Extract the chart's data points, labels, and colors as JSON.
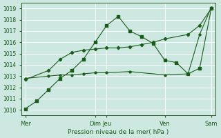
{
  "xlabel": "Pression niveau de la mer( hPa )",
  "bg_color": "#cce8e0",
  "grid_color": "#ffffff",
  "line_color": "#1a5c1a",
  "ylim": [
    1009.5,
    1019.5
  ],
  "yticks": [
    1010,
    1011,
    1012,
    1013,
    1014,
    1015,
    1016,
    1017,
    1018,
    1019
  ],
  "xtick_labels": [
    "Mer",
    "Dim",
    "Jeu",
    "Ven",
    "Sam"
  ],
  "xtick_positions": [
    0,
    9,
    10.5,
    18,
    24
  ],
  "xmin": -0.5,
  "xmax": 24.5,
  "vlines_x": [
    0,
    9,
    10.5,
    18,
    24
  ],
  "line1_x": [
    0,
    1.5,
    3,
    4.5,
    6,
    7.5,
    9,
    10.5,
    12,
    13.5,
    15,
    16.5,
    18,
    19.5,
    21,
    22.5,
    24
  ],
  "line1_y": [
    1010.1,
    1010.8,
    1011.8,
    1012.8,
    1013.5,
    1014.5,
    1016.0,
    1017.5,
    1018.3,
    1017.0,
    1016.5,
    1015.9,
    1014.4,
    1014.2,
    1013.2,
    1013.7,
    1019.0
  ],
  "line2_x": [
    0,
    3,
    4.5,
    6,
    7.5,
    9,
    10.5,
    12,
    13.5,
    15,
    16.5,
    18,
    21,
    22.5,
    24
  ],
  "line2_y": [
    1012.7,
    1013.5,
    1014.5,
    1015.1,
    1015.3,
    1015.4,
    1015.5,
    1015.5,
    1015.6,
    1015.8,
    1016.0,
    1016.3,
    1016.7,
    1017.5,
    1019.0
  ],
  "line3_x": [
    0,
    3,
    4.5,
    6,
    7.5,
    9,
    10.5,
    13.5,
    18,
    21,
    22.5,
    24
  ],
  "line3_y": [
    1012.8,
    1013.0,
    1013.1,
    1013.1,
    1013.2,
    1013.3,
    1013.3,
    1013.4,
    1013.1,
    1013.2,
    1016.7,
    1019.1
  ],
  "marker_size": 2.5
}
